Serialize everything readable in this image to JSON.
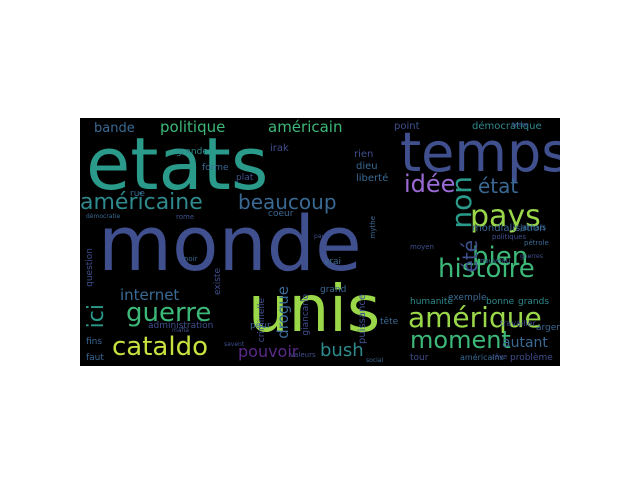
{
  "palette": {
    "background": "#000000",
    "teal": "#2a9a8a",
    "green": "#3cb878",
    "lime": "#9ad84a",
    "purple": "#46307a",
    "indigo": "#404f8e",
    "blue": "#3a6a94",
    "cyan": "#2f8a8e"
  },
  "words": [
    {
      "text": "etats",
      "color": "#2a9a8a"
    },
    {
      "text": "monde",
      "color": "#404f8e"
    },
    {
      "text": "unis",
      "color": "#9ad84a"
    },
    {
      "text": "temps",
      "color": "#404f8e"
    },
    {
      "text": "pays",
      "color": "#9ad84a"
    },
    {
      "text": "histoire",
      "color": "#3cb878"
    },
    {
      "text": "amérique",
      "color": "#9ad84a"
    },
    {
      "text": "bien",
      "color": "#3cb878"
    },
    {
      "text": "américaine",
      "color": "#2f8a8e"
    },
    {
      "text": "guerre",
      "color": "#3cb878"
    },
    {
      "text": "cataldo",
      "color": "#c8e040"
    },
    {
      "text": "moment",
      "color": "#3cb878"
    },
    {
      "text": "beaucoup",
      "color": "#3a6a94"
    },
    {
      "text": "non",
      "color": "#2a9a8a"
    },
    {
      "text": "idée",
      "color": "#9b6ad4"
    },
    {
      "text": "état",
      "color": "#3a6a94"
    },
    {
      "text": "été",
      "color": "#404f8e"
    },
    {
      "text": "bush",
      "color": "#2f8a8e"
    },
    {
      "text": "pouvoir",
      "color": "#5a2a8a"
    },
    {
      "text": "ici",
      "color": "#2a9a8a"
    },
    {
      "text": "internet",
      "color": "#3a6a94"
    },
    {
      "text": "politique",
      "color": "#3cb878"
    },
    {
      "text": "américain",
      "color": "#3cb878"
    },
    {
      "text": "drogue",
      "color": "#3a6a94"
    },
    {
      "text": "autant",
      "color": "#3a6a94"
    },
    {
      "text": "bande",
      "color": "#3a6a94"
    },
    {
      "text": "administration",
      "color": "#404f8e"
    },
    {
      "text": "puissance",
      "color": "#404f8e"
    },
    {
      "text": "giancarlo",
      "color": "#404f8e"
    },
    {
      "text": "criminelle",
      "color": "#404f8e"
    },
    {
      "text": "mondialisation",
      "color": "#3a6a94"
    },
    {
      "text": "humanité",
      "color": "#2f8a8e"
    },
    {
      "text": "exemple",
      "color": "#3a6a94"
    },
    {
      "text": "démocratique",
      "color": "#2f8a8e"
    },
    {
      "text": "point",
      "color": "#404f8e"
    },
    {
      "text": "liberté",
      "color": "#3a6a94"
    },
    {
      "text": "rien",
      "color": "#404f8e"
    },
    {
      "text": "dieu",
      "color": "#3a6a94"
    },
    {
      "text": "irak",
      "color": "#404f8e"
    },
    {
      "text": "grande",
      "color": "#2f8a8e"
    },
    {
      "text": "forme",
      "color": "#3a6a94"
    },
    {
      "text": "plat",
      "color": "#404f8e"
    },
    {
      "text": "coeur",
      "color": "#3a6a94"
    },
    {
      "text": "grand",
      "color": "#3a6a94"
    },
    {
      "text": "tête",
      "color": "#3a6a94"
    },
    {
      "text": "tour",
      "color": "#404f8e"
    },
    {
      "text": "vrai",
      "color": "#3a6a94"
    },
    {
      "text": "peur",
      "color": "#3a6a94"
    },
    {
      "text": "question",
      "color": "#404f8e"
    },
    {
      "text": "rue",
      "color": "#3a6a94"
    },
    {
      "text": "fins",
      "color": "#3a6a94"
    },
    {
      "text": "faut",
      "color": "#3a6a94"
    },
    {
      "text": "existe",
      "color": "#404f8e"
    },
    {
      "text": "bonne",
      "color": "#2f8a8e"
    },
    {
      "text": "grands",
      "color": "#2f8a8e"
    },
    {
      "text": "argent",
      "color": "#3a6a94"
    },
    {
      "text": "travailler",
      "color": "#404f8e"
    },
    {
      "text": "problème",
      "color": "#404f8e"
    },
    {
      "text": "américains",
      "color": "#3a6a94"
    },
    {
      "text": "jamais",
      "color": "#3a6a94"
    },
    {
      "text": "moyen",
      "color": "#404f8e"
    },
    {
      "text": "nouveau",
      "color": "#3a6a94"
    },
    {
      "text": "rêve",
      "color": "#404f8e"
    },
    {
      "text": "pétrole",
      "color": "#3a6a94"
    },
    {
      "text": "politiques",
      "color": "#404f8e"
    },
    {
      "text": "noir",
      "color": "#3a6a94"
    },
    {
      "text": "rome",
      "color": "#404f8e"
    },
    {
      "text": "terre",
      "color": "#404f8e"
    },
    {
      "text": "mythe",
      "color": "#3a6a94"
    },
    {
      "text": "valeurs",
      "color": "#404f8e"
    },
    {
      "text": "savent",
      "color": "#404f8e"
    },
    {
      "text": "démocratie",
      "color": "#3a6a94"
    },
    {
      "text": "mafia",
      "color": "#404f8e"
    },
    {
      "text": "social",
      "color": "#3a6a94"
    },
    {
      "text": "pays",
      "color": "#404f8e"
    },
    {
      "text": "guerres",
      "color": "#404f8e"
    }
  ]
}
